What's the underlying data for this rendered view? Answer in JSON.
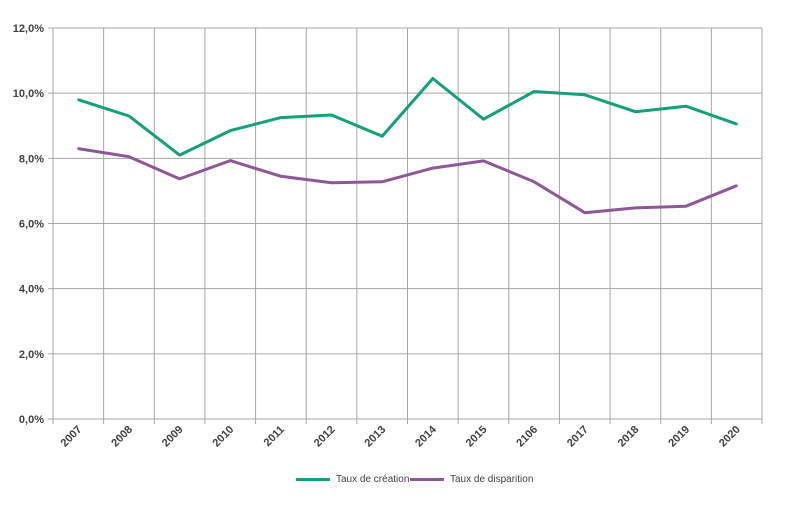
{
  "chart_data": {
    "type": "line",
    "title": "",
    "xlabel": "",
    "ylabel": "",
    "categories": [
      "2007",
      "2008",
      "2009",
      "2010",
      "2011",
      "2012",
      "2013",
      "2014",
      "2015",
      "2106",
      "2017",
      "2018",
      "2019",
      "2020"
    ],
    "y_ticks": [
      "0,0%",
      "2,0%",
      "4,0%",
      "6,0%",
      "8,0%",
      "10,0%",
      "12,0%"
    ],
    "ylim": [
      0,
      12
    ],
    "grid": "on",
    "legend_position": "bottom",
    "series": [
      {
        "name": "Taux de création",
        "color": "#13A07A",
        "values": [
          9.8,
          9.3,
          8.1,
          8.85,
          9.25,
          9.33,
          8.68,
          10.45,
          9.2,
          10.05,
          9.95,
          9.43,
          9.6,
          9.05
        ]
      },
      {
        "name": "Taux de disparition",
        "color": "#8E5896",
        "values": [
          8.3,
          8.05,
          7.37,
          7.93,
          7.45,
          7.25,
          7.28,
          7.7,
          7.92,
          7.28,
          6.33,
          6.48,
          6.53,
          7.16
        ]
      }
    ]
  }
}
